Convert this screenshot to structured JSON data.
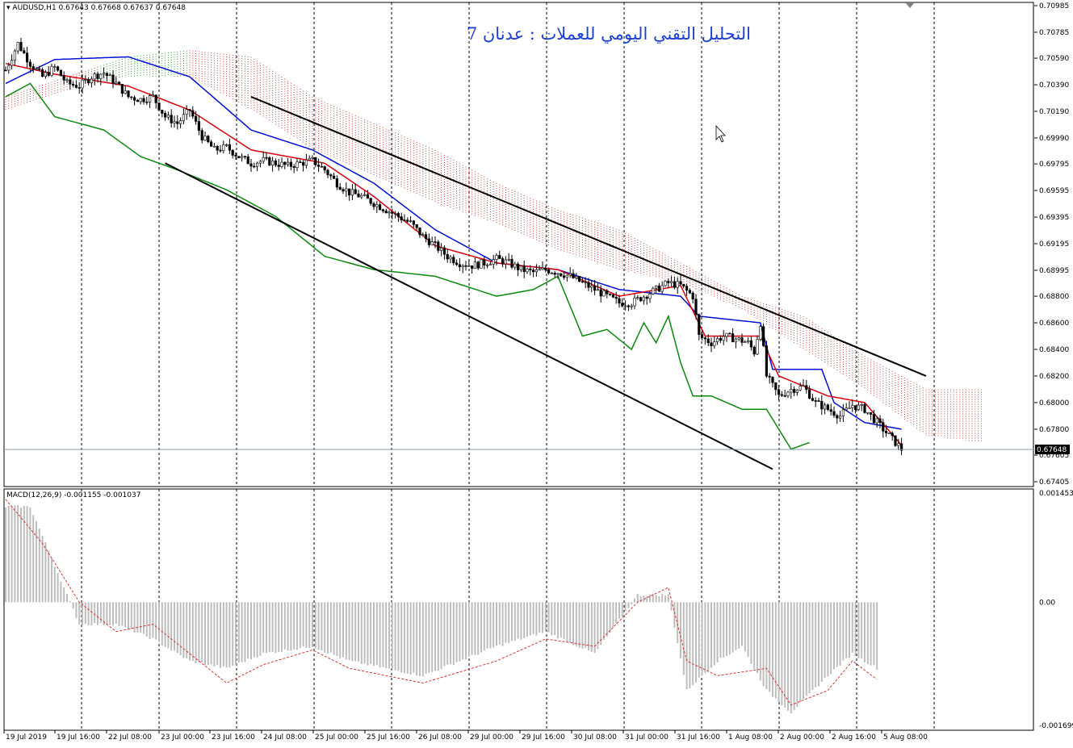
{
  "window": {
    "symbol_line": "AUDUSD,H1  0.67643 0.67668 0.67637 0.67648",
    "overlay_title": "التحليل التقني اليومي للعملات : عدنان 7",
    "current_price": "0.67648"
  },
  "colors": {
    "background": "#ffffff",
    "grid": "#000000",
    "bull_candle": "#ffffff",
    "bear_candle": "#000000",
    "tenkan": "#e0000b",
    "kijun": "#0010d6",
    "chikou": "#0a8a0a",
    "cloud_bear": "#c04040",
    "cloud_bull": "#2a9a2a",
    "macd_hist": "#bdbdbd",
    "macd_signal": "#e03030",
    "price_line": "#8a9aa8",
    "price_label_bg": "#000000",
    "channel": "#000000",
    "title_text": "#1c3fd6"
  },
  "price_axis": {
    "labels": [
      "0.70985",
      "0.70785",
      "0.70590",
      "0.70390",
      "0.70190",
      "0.69990",
      "0.69795",
      "0.69595",
      "0.69395",
      "0.69195",
      "0.68995",
      "0.68800",
      "0.68600",
      "0.68400",
      "0.68200",
      "0.68000",
      "0.67800",
      "0.67605",
      "0.67405"
    ],
    "min": 0.67405,
    "max": 0.70985
  },
  "macd_panel": {
    "label": "MACD(12,26,9) -0.001155 -0.001037",
    "axis_labels": [
      "0.001453",
      "0.00",
      "-0.001699"
    ],
    "max": 0.001453,
    "min": -0.001699
  },
  "time_axis": {
    "labels": [
      "19 Jul 2019",
      "19 Jul 16:00",
      "22 Jul 08:00",
      "23 Jul 00:00",
      "23 Jul 16:00",
      "24 Jul 08:00",
      "25 Jul 00:00",
      "25 Jul 16:00",
      "26 Jul 08:00",
      "29 Jul 00:00",
      "29 Jul 16:00",
      "30 Jul 08:00",
      "31 Jul 00:00",
      "31 Jul 16:00",
      "1 Aug 08:00",
      "2 Aug 00:00",
      "2 Aug 16:00",
      "5 Aug 08:00"
    ]
  },
  "chart_data": {
    "type": "candlestick",
    "symbol": "AUDUSD",
    "timeframe": "H1",
    "indicators": [
      "Ichimoku Kinko Hyo",
      "MACD(12,26,9)"
    ],
    "ylim": [
      0.67405,
      0.70985
    ],
    "grid": "vertical dashed",
    "close_path": [
      [
        0,
        0.705
      ],
      [
        4,
        0.707
      ],
      [
        8,
        0.7055
      ],
      [
        12,
        0.7045
      ],
      [
        16,
        0.7052
      ],
      [
        20,
        0.704
      ],
      [
        24,
        0.7038
      ],
      [
        28,
        0.7045
      ],
      [
        32,
        0.7048
      ],
      [
        36,
        0.704
      ],
      [
        40,
        0.703
      ],
      [
        44,
        0.7028
      ],
      [
        48,
        0.703
      ],
      [
        52,
        0.7015
      ],
      [
        56,
        0.701
      ],
      [
        60,
        0.702
      ],
      [
        64,
        0.7
      ],
      [
        68,
        0.699
      ],
      [
        72,
        0.6992
      ],
      [
        76,
        0.6985
      ],
      [
        80,
        0.698
      ],
      [
        84,
        0.6982
      ],
      [
        88,
        0.698
      ],
      [
        92,
        0.6978
      ],
      [
        96,
        0.698
      ],
      [
        100,
        0.6982
      ],
      [
        104,
        0.6975
      ],
      [
        108,
        0.6965
      ],
      [
        112,
        0.6958
      ],
      [
        116,
        0.6955
      ],
      [
        120,
        0.695
      ],
      [
        124,
        0.6945
      ],
      [
        128,
        0.694
      ],
      [
        132,
        0.6935
      ],
      [
        136,
        0.6925
      ],
      [
        140,
        0.6918
      ],
      [
        144,
        0.691
      ],
      [
        148,
        0.6905
      ],
      [
        152,
        0.6903
      ],
      [
        156,
        0.6905
      ],
      [
        160,
        0.6908
      ],
      [
        164,
        0.6905
      ],
      [
        168,
        0.69
      ],
      [
        172,
        0.6898
      ],
      [
        176,
        0.69
      ],
      [
        180,
        0.6898
      ],
      [
        184,
        0.6895
      ],
      [
        188,
        0.689
      ],
      [
        192,
        0.6885
      ],
      [
        196,
        0.688
      ],
      [
        200,
        0.6875
      ],
      [
        204,
        0.6875
      ],
      [
        208,
        0.688
      ],
      [
        212,
        0.6885
      ],
      [
        216,
        0.689
      ],
      [
        220,
        0.6888
      ],
      [
        224,
        0.688
      ],
      [
        226,
        0.685
      ],
      [
        230,
        0.6845
      ],
      [
        234,
        0.685
      ],
      [
        238,
        0.6848
      ],
      [
        242,
        0.6845
      ],
      [
        244,
        0.6838
      ],
      [
        246,
        0.686
      ],
      [
        248,
        0.682
      ],
      [
        252,
        0.6805
      ],
      [
        256,
        0.681
      ],
      [
        260,
        0.6812
      ],
      [
        264,
        0.68
      ],
      [
        268,
        0.6795
      ],
      [
        272,
        0.679
      ],
      [
        276,
        0.6798
      ],
      [
        280,
        0.6795
      ],
      [
        284,
        0.6785
      ],
      [
        288,
        0.6775
      ],
      [
        290,
        0.677
      ],
      [
        292,
        0.6765
      ]
    ],
    "tenkan_path": [
      [
        0,
        0.7055
      ],
      [
        16,
        0.7047
      ],
      [
        40,
        0.7038
      ],
      [
        60,
        0.702
      ],
      [
        80,
        0.699
      ],
      [
        104,
        0.698
      ],
      [
        120,
        0.6955
      ],
      [
        140,
        0.6918
      ],
      [
        160,
        0.6905
      ],
      [
        180,
        0.69
      ],
      [
        200,
        0.688
      ],
      [
        220,
        0.6888
      ],
      [
        228,
        0.685
      ],
      [
        246,
        0.685
      ],
      [
        252,
        0.682
      ],
      [
        268,
        0.6805
      ],
      [
        280,
        0.68
      ],
      [
        292,
        0.6768
      ]
    ],
    "kijun_path": [
      [
        0,
        0.704
      ],
      [
        16,
        0.7058
      ],
      [
        40,
        0.706
      ],
      [
        60,
        0.7045
      ],
      [
        80,
        0.7005
      ],
      [
        100,
        0.699
      ],
      [
        120,
        0.6965
      ],
      [
        140,
        0.693
      ],
      [
        160,
        0.6905
      ],
      [
        180,
        0.69
      ],
      [
        200,
        0.6885
      ],
      [
        220,
        0.688
      ],
      [
        226,
        0.6865
      ],
      [
        246,
        0.686
      ],
      [
        250,
        0.6825
      ],
      [
        266,
        0.6825
      ],
      [
        270,
        0.68
      ],
      [
        280,
        0.6785
      ],
      [
        292,
        0.678
      ]
    ],
    "chikou_path": [
      [
        0,
        0.703
      ],
      [
        8,
        0.704
      ],
      [
        16,
        0.7015
      ],
      [
        32,
        0.7005
      ],
      [
        44,
        0.6985
      ],
      [
        56,
        0.6975
      ],
      [
        72,
        0.696
      ],
      [
        88,
        0.694
      ],
      [
        104,
        0.691
      ],
      [
        120,
        0.69
      ],
      [
        140,
        0.6895
      ],
      [
        160,
        0.688
      ],
      [
        172,
        0.6885
      ],
      [
        180,
        0.6895
      ],
      [
        188,
        0.685
      ],
      [
        196,
        0.6855
      ],
      [
        204,
        0.684
      ],
      [
        208,
        0.686
      ],
      [
        212,
        0.6845
      ],
      [
        216,
        0.6865
      ],
      [
        220,
        0.683
      ],
      [
        224,
        0.6805
      ],
      [
        230,
        0.6805
      ],
      [
        240,
        0.6795
      ],
      [
        248,
        0.6795
      ],
      [
        252,
        0.678
      ],
      [
        256,
        0.6765
      ],
      [
        262,
        0.677
      ]
    ],
    "cloud_path": [
      [
        0,
        0.703,
        0.702
      ],
      [
        20,
        0.7045,
        0.7035
      ],
      [
        40,
        0.706,
        0.7045
      ],
      [
        60,
        0.7065,
        0.7045
      ],
      [
        80,
        0.706,
        0.702
      ],
      [
        100,
        0.703,
        0.699
      ],
      [
        120,
        0.701,
        0.697
      ],
      [
        140,
        0.699,
        0.695
      ],
      [
        160,
        0.6965,
        0.6935
      ],
      [
        180,
        0.6945,
        0.6915
      ],
      [
        200,
        0.693,
        0.69
      ],
      [
        220,
        0.6905,
        0.689
      ],
      [
        240,
        0.688,
        0.687
      ],
      [
        260,
        0.6865,
        0.684
      ],
      [
        280,
        0.6835,
        0.681
      ],
      [
        300,
        0.681,
        0.6775
      ],
      [
        318,
        0.681,
        0.677
      ]
    ],
    "channel_lines": [
      {
        "from": [
          80,
          0.703
        ],
        "to": [
          300,
          0.682
        ]
      },
      {
        "from": [
          52,
          0.698
        ],
        "to": [
          250,
          0.675
        ]
      }
    ],
    "macd_hist_path": [
      [
        0,
        0.0013
      ],
      [
        8,
        0.0013
      ],
      [
        16,
        0.0005
      ],
      [
        24,
        -0.0003
      ],
      [
        36,
        -0.0003
      ],
      [
        48,
        -0.0005
      ],
      [
        60,
        -0.0008
      ],
      [
        72,
        -0.0009
      ],
      [
        84,
        -0.0007
      ],
      [
        100,
        -0.0006
      ],
      [
        112,
        -0.0008
      ],
      [
        136,
        -0.001
      ],
      [
        160,
        -0.0006
      ],
      [
        176,
        -0.0004
      ],
      [
        192,
        -0.0007
      ],
      [
        206,
        0.0001
      ],
      [
        216,
        0.0001
      ],
      [
        222,
        -0.0012
      ],
      [
        232,
        -0.0008
      ],
      [
        240,
        -0.0006
      ],
      [
        248,
        -0.0012
      ],
      [
        256,
        -0.0015
      ],
      [
        268,
        -0.001
      ],
      [
        276,
        -0.0007
      ],
      [
        284,
        -0.0009
      ]
    ],
    "macd_signal_path": [
      [
        0,
        0.0014
      ],
      [
        12,
        0.0008
      ],
      [
        24,
        0.0
      ],
      [
        36,
        -0.0004
      ],
      [
        48,
        -0.0003
      ],
      [
        60,
        -0.0007
      ],
      [
        72,
        -0.0011
      ],
      [
        84,
        -0.00085
      ],
      [
        100,
        -0.00065
      ],
      [
        112,
        -0.0009
      ],
      [
        136,
        -0.0011
      ],
      [
        160,
        -0.0008
      ],
      [
        176,
        -0.0005
      ],
      [
        192,
        -0.0006
      ],
      [
        206,
        0.0
      ],
      [
        216,
        0.0002
      ],
      [
        222,
        -0.0008
      ],
      [
        232,
        -0.001
      ],
      [
        248,
        -0.0009
      ],
      [
        256,
        -0.0014
      ],
      [
        268,
        -0.0012
      ],
      [
        276,
        -0.0008
      ],
      [
        284,
        -0.00105
      ]
    ]
  }
}
